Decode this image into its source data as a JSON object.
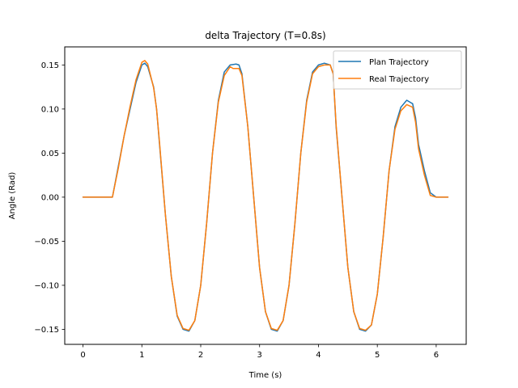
{
  "chart_data": {
    "type": "line",
    "title": "delta Trajectory (T=0.8s)",
    "xlabel": "Time (s)",
    "ylabel": "Angle (Rad)",
    "xlim": [
      -0.31,
      6.51
    ],
    "ylim": [
      -0.167,
      0.1705
    ],
    "xticks": [
      0,
      1,
      2,
      3,
      4,
      5,
      6
    ],
    "xtick_labels": [
      "0",
      "1",
      "2",
      "3",
      "4",
      "5",
      "6"
    ],
    "yticks": [
      -0.15,
      -0.1,
      -0.05,
      0.0,
      0.05,
      0.1,
      0.15
    ],
    "ytick_labels": [
      "−0.15",
      "−0.10",
      "−0.05",
      "0.00",
      "0.05",
      "0.10",
      "0.15"
    ],
    "grid": false,
    "legend_position": "upper right",
    "series": [
      {
        "name": "Plan Trajectory",
        "color": "#1f77b4",
        "x": [
          0,
          0.5,
          0.6,
          0.7,
          0.8,
          0.9,
          1.0,
          1.05,
          1.1,
          1.2,
          1.25,
          1.3,
          1.4,
          1.5,
          1.6,
          1.7,
          1.8,
          1.9,
          2.0,
          2.1,
          2.2,
          2.3,
          2.4,
          2.5,
          2.6,
          2.65,
          2.7,
          2.8,
          2.9,
          3.0,
          3.1,
          3.2,
          3.3,
          3.4,
          3.5,
          3.6,
          3.7,
          3.8,
          3.9,
          4.0,
          4.1,
          4.2,
          4.25,
          4.3,
          4.4,
          4.5,
          4.6,
          4.7,
          4.8,
          4.9,
          5.0,
          5.1,
          5.2,
          5.3,
          5.4,
          5.5,
          5.6,
          5.65,
          5.7,
          5.8,
          5.9,
          6.0,
          6.1,
          6.2
        ],
        "y": [
          0,
          0,
          0.035,
          0.07,
          0.1,
          0.13,
          0.15,
          0.152,
          0.148,
          0.125,
          0.1,
          0.06,
          -0.02,
          -0.09,
          -0.135,
          -0.15,
          -0.152,
          -0.14,
          -0.1,
          -0.03,
          0.05,
          0.11,
          0.142,
          0.15,
          0.151,
          0.15,
          0.14,
          0.08,
          0.0,
          -0.08,
          -0.13,
          -0.15,
          -0.152,
          -0.14,
          -0.1,
          -0.03,
          0.05,
          0.11,
          0.142,
          0.15,
          0.152,
          0.15,
          0.14,
          0.08,
          0.0,
          -0.08,
          -0.13,
          -0.15,
          -0.152,
          -0.145,
          -0.11,
          -0.045,
          0.03,
          0.08,
          0.102,
          0.11,
          0.106,
          0.09,
          0.06,
          0.03,
          0.005,
          0.0,
          0.0,
          0.0
        ]
      },
      {
        "name": "Real Trajectory",
        "color": "#ff7f0e",
        "x": [
          0,
          0.5,
          0.6,
          0.7,
          0.8,
          0.9,
          1.0,
          1.05,
          1.1,
          1.2,
          1.25,
          1.3,
          1.4,
          1.5,
          1.6,
          1.7,
          1.8,
          1.9,
          2.0,
          2.1,
          2.2,
          2.3,
          2.4,
          2.5,
          2.55,
          2.6,
          2.65,
          2.7,
          2.8,
          2.9,
          3.0,
          3.1,
          3.2,
          3.3,
          3.4,
          3.5,
          3.6,
          3.7,
          3.8,
          3.9,
          4.0,
          4.1,
          4.2,
          4.25,
          4.3,
          4.4,
          4.5,
          4.6,
          4.7,
          4.8,
          4.9,
          5.0,
          5.1,
          5.2,
          5.3,
          5.4,
          5.5,
          5.6,
          5.65,
          5.7,
          5.8,
          5.9,
          6.0,
          6.1,
          6.15,
          6.2
        ],
        "y": [
          0,
          0,
          0.033,
          0.07,
          0.103,
          0.133,
          0.153,
          0.155,
          0.151,
          0.124,
          0.1,
          0.062,
          -0.02,
          -0.09,
          -0.134,
          -0.149,
          -0.151,
          -0.14,
          -0.1,
          -0.03,
          0.05,
          0.108,
          0.138,
          0.148,
          0.146,
          0.146,
          0.146,
          0.138,
          0.08,
          0.0,
          -0.08,
          -0.13,
          -0.149,
          -0.151,
          -0.14,
          -0.1,
          -0.03,
          0.05,
          0.108,
          0.14,
          0.148,
          0.15,
          0.15,
          0.14,
          0.082,
          0.0,
          -0.08,
          -0.13,
          -0.149,
          -0.151,
          -0.145,
          -0.11,
          -0.045,
          0.03,
          0.077,
          0.098,
          0.105,
          0.102,
          0.085,
          0.055,
          0.025,
          0.002,
          0.0,
          0.0,
          0.0,
          0.0
        ]
      }
    ]
  }
}
